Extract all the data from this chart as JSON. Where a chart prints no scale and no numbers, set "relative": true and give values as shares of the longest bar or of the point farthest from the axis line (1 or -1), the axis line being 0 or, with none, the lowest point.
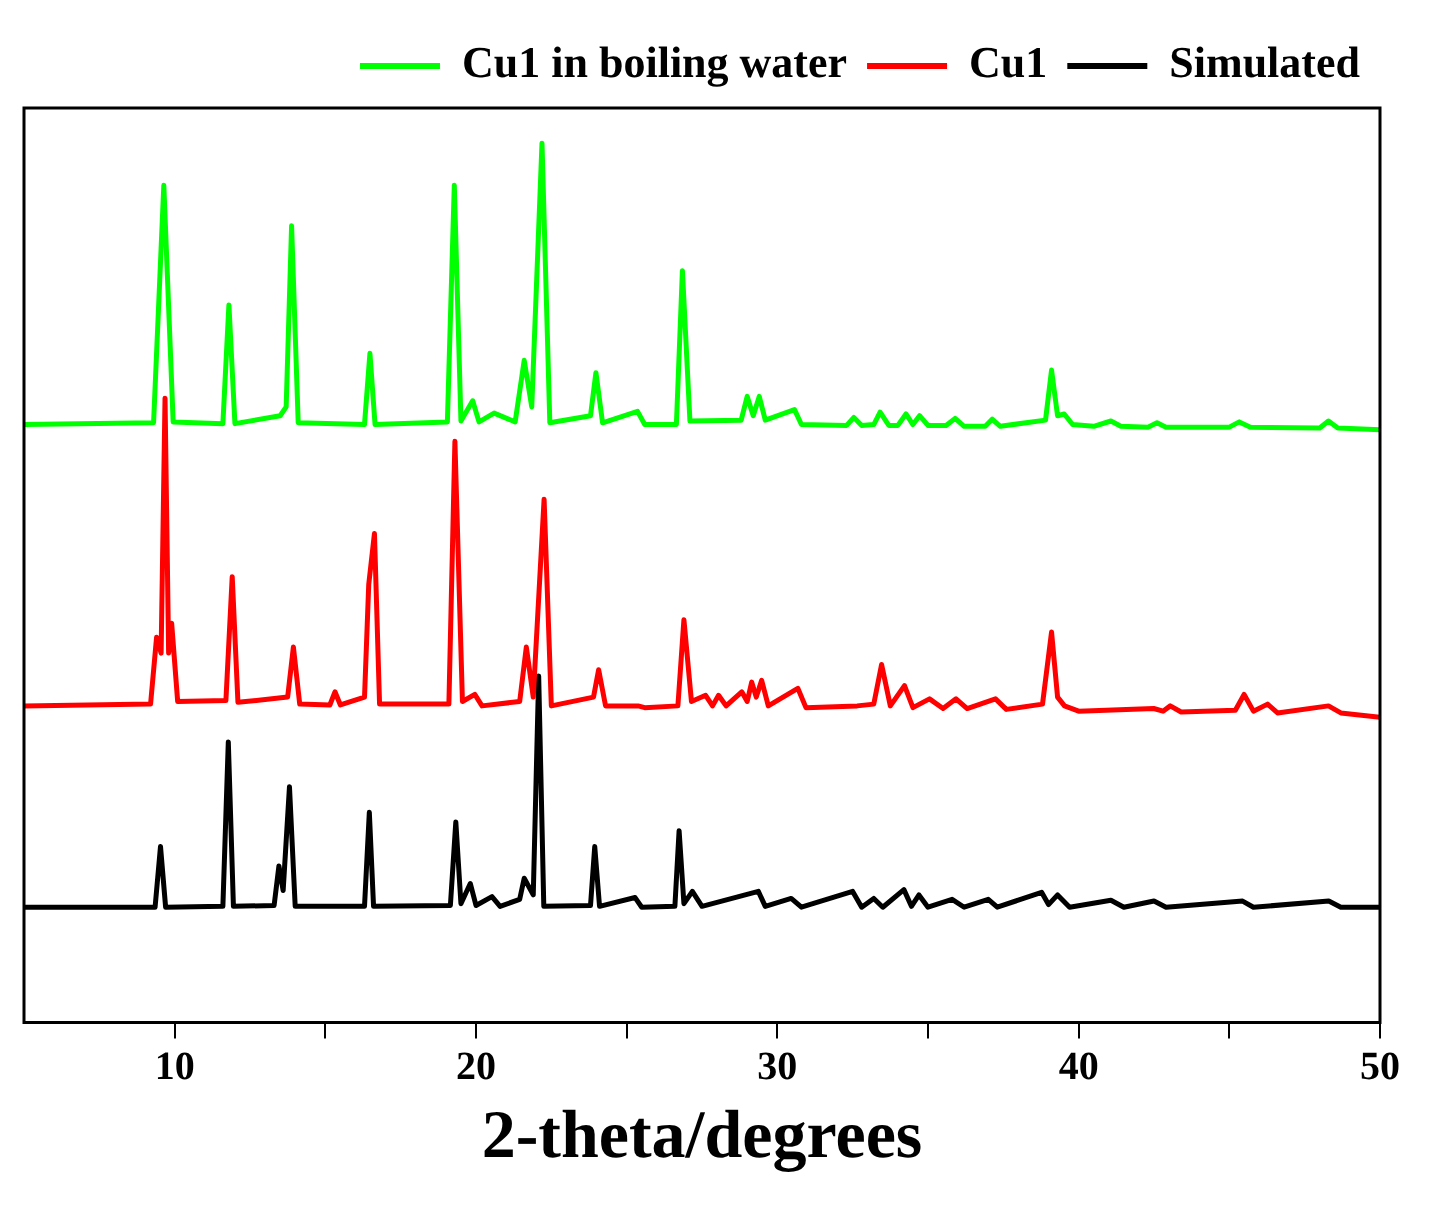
{
  "chart_data": {
    "type": "line",
    "xlabel": "2-theta/degrees",
    "xlim": [
      5,
      50
    ],
    "xticks": [
      10,
      {
        "value": 15,
        "label": null
      },
      20,
      {
        "value": 25,
        "label": null
      },
      30,
      {
        "value": 35,
        "label": null
      },
      40,
      {
        "value": 45,
        "label": null
      },
      50
    ],
    "relative": true,
    "legend": "top right",
    "series": [
      {
        "name": "Cu1 in boiling water",
        "color": "#00ff00",
        "x": [
          5,
          9.3,
          9.64,
          9.95,
          11.6,
          11.8,
          12.0,
          13.5,
          13.7,
          13.88,
          14.1,
          16.3,
          16.48,
          16.65,
          19.05,
          19.28,
          19.5,
          19.89,
          20.1,
          20.6,
          21.3,
          21.6,
          21.85,
          22.19,
          22.45,
          23.8,
          23.98,
          24.2,
          25.36,
          25.6,
          26.65,
          26.85,
          27.1,
          28.8,
          29.0,
          29.2,
          29.4,
          29.6,
          30.57,
          30.8,
          32.3,
          32.54,
          32.8,
          33.2,
          33.41,
          33.7,
          34.0,
          34.27,
          34.5,
          34.72,
          35.0,
          35.6,
          35.9,
          36.2,
          36.9,
          37.13,
          37.4,
          38.9,
          39.1,
          39.3,
          39.52,
          39.8,
          40.5,
          41.07,
          41.4,
          42.3,
          42.6,
          42.9,
          45.0,
          45.33,
          45.7,
          48.0,
          48.29,
          48.6,
          50
        ],
        "values": [
          0.68,
          0.682,
          0.952,
          0.683,
          0.681,
          0.816,
          0.681,
          0.69,
          0.7,
          0.906,
          0.682,
          0.68,
          0.761,
          0.68,
          0.683,
          0.952,
          0.684,
          0.707,
          0.683,
          0.693,
          0.683,
          0.753,
          0.7,
          1.0,
          0.682,
          0.69,
          0.739,
          0.682,
          0.695,
          0.68,
          0.68,
          0.855,
          0.684,
          0.685,
          0.712,
          0.69,
          0.712,
          0.685,
          0.697,
          0.68,
          0.679,
          0.688,
          0.679,
          0.68,
          0.694,
          0.679,
          0.679,
          0.692,
          0.68,
          0.69,
          0.679,
          0.679,
          0.687,
          0.678,
          0.678,
          0.686,
          0.678,
          0.685,
          0.742,
          0.69,
          0.692,
          0.68,
          0.678,
          0.684,
          0.678,
          0.677,
          0.682,
          0.677,
          0.677,
          0.683,
          0.677,
          0.676,
          0.684,
          0.676,
          0.674
        ]
      },
      {
        "name": "Cu1",
        "color": "#ff0000",
        "x": [
          5,
          9.2,
          9.4,
          9.55,
          9.68,
          9.8,
          9.9,
          10.1,
          11.7,
          11.91,
          12.1,
          13.75,
          13.94,
          14.15,
          15.15,
          15.32,
          15.5,
          16.3,
          16.44,
          16.63,
          16.8,
          19.1,
          19.3,
          19.55,
          19.96,
          20.2,
          21.45,
          21.67,
          21.9,
          22.26,
          22.5,
          23.9,
          24.07,
          24.3,
          25.38,
          25.6,
          26.7,
          26.9,
          27.15,
          27.62,
          27.85,
          28.05,
          28.3,
          28.82,
          29.0,
          29.15,
          29.3,
          29.48,
          29.7,
          30.68,
          30.95,
          32.65,
          33.2,
          33.46,
          33.75,
          34.22,
          34.5,
          35.05,
          35.5,
          35.93,
          36.3,
          37.24,
          37.6,
          38.8,
          39.1,
          39.3,
          39.53,
          40.0,
          42.49,
          42.8,
          43.04,
          43.4,
          45.2,
          45.49,
          45.8,
          46.27,
          46.6,
          48.29,
          48.7,
          50
        ],
        "values": [
          0.36,
          0.362,
          0.438,
          0.42,
          0.71,
          0.42,
          0.454,
          0.365,
          0.366,
          0.507,
          0.364,
          0.37,
          0.427,
          0.362,
          0.361,
          0.376,
          0.361,
          0.37,
          0.498,
          0.556,
          0.362,
          0.362,
          0.661,
          0.365,
          0.373,
          0.36,
          0.365,
          0.427,
          0.37,
          0.595,
          0.36,
          0.37,
          0.401,
          0.36,
          0.36,
          0.358,
          0.36,
          0.458,
          0.365,
          0.372,
          0.36,
          0.372,
          0.36,
          0.376,
          0.365,
          0.387,
          0.37,
          0.389,
          0.36,
          0.38,
          0.358,
          0.36,
          0.362,
          0.407,
          0.36,
          0.383,
          0.358,
          0.368,
          0.357,
          0.368,
          0.357,
          0.368,
          0.356,
          0.362,
          0.444,
          0.37,
          0.36,
          0.354,
          0.357,
          0.354,
          0.36,
          0.353,
          0.355,
          0.373,
          0.354,
          0.362,
          0.352,
          0.36,
          0.352,
          0.347
        ]
      },
      {
        "name": "Simulated",
        "color": "#000000",
        "x": [
          5,
          9.35,
          9.53,
          9.7,
          11.6,
          11.78,
          11.95,
          13.3,
          13.46,
          13.6,
          13.81,
          14.0,
          16.3,
          16.46,
          16.6,
          19.15,
          19.33,
          19.5,
          19.81,
          20.0,
          20.53,
          20.8,
          21.45,
          21.6,
          21.9,
          22.08,
          22.25,
          23.8,
          23.94,
          24.1,
          25.28,
          25.5,
          26.6,
          26.74,
          26.9,
          27.18,
          27.5,
          29.37,
          29.6,
          30.46,
          30.8,
          32.5,
          32.8,
          33.2,
          33.5,
          34.2,
          34.45,
          34.7,
          35.0,
          35.8,
          36.2,
          37.0,
          37.3,
          38.77,
          39.0,
          39.3,
          39.7,
          41.07,
          41.5,
          42.5,
          42.9,
          45.44,
          45.8,
          48.3,
          48.7,
          50
        ],
        "values": [
          0.131,
          0.131,
          0.2,
          0.131,
          0.132,
          0.319,
          0.132,
          0.133,
          0.178,
          0.15,
          0.268,
          0.132,
          0.132,
          0.239,
          0.132,
          0.133,
          0.228,
          0.135,
          0.158,
          0.133,
          0.143,
          0.132,
          0.14,
          0.164,
          0.145,
          0.394,
          0.132,
          0.133,
          0.2,
          0.132,
          0.142,
          0.131,
          0.132,
          0.218,
          0.135,
          0.149,
          0.132,
          0.149,
          0.132,
          0.141,
          0.131,
          0.149,
          0.131,
          0.141,
          0.131,
          0.151,
          0.132,
          0.145,
          0.131,
          0.14,
          0.131,
          0.14,
          0.131,
          0.148,
          0.134,
          0.145,
          0.131,
          0.139,
          0.131,
          0.138,
          0.131,
          0.138,
          0.131,
          0.138,
          0.131,
          0.131
        ]
      }
    ]
  }
}
